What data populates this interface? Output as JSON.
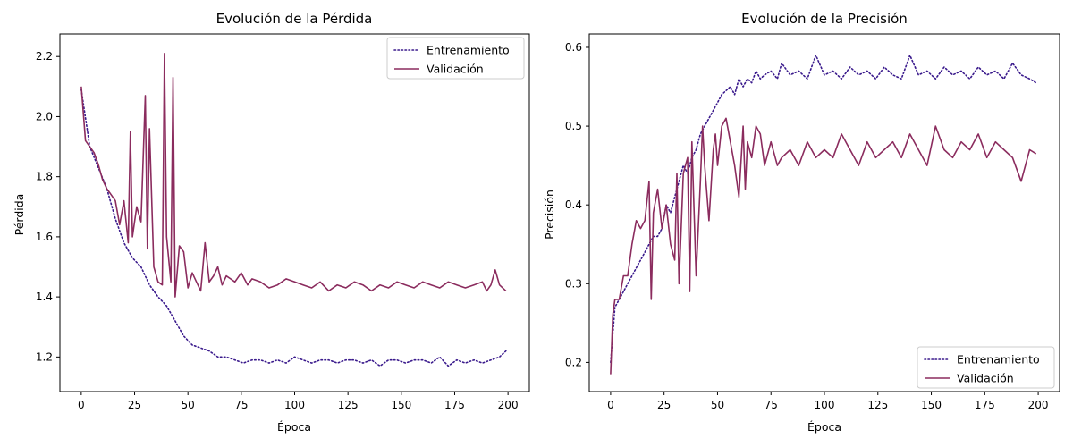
{
  "colors": {
    "train": "#3a1a8c",
    "val": "#8b2c5e"
  },
  "chart_data": [
    {
      "type": "line",
      "title": "Evolución de la Pérdida",
      "xlabel": "Época",
      "ylabel": "Pérdida",
      "xlim": [
        -10,
        210
      ],
      "ylim": [
        1.085,
        2.275
      ],
      "xticks": [
        0,
        25,
        50,
        75,
        100,
        125,
        150,
        175,
        200
      ],
      "yticks": [
        1.2,
        1.4,
        1.6,
        1.8,
        2.0,
        2.2
      ],
      "ytick_labels": [
        "1.2",
        "1.4",
        "1.6",
        "1.8",
        "2.0",
        "2.2"
      ],
      "legend": "top-right",
      "grid": false,
      "series": [
        {
          "name": "Entrenamiento",
          "style": "dotted",
          "x": [
            0,
            4,
            8,
            12,
            16,
            20,
            24,
            28,
            32,
            36,
            40,
            44,
            48,
            52,
            56,
            60,
            64,
            68,
            72,
            76,
            80,
            84,
            88,
            92,
            96,
            100,
            104,
            108,
            112,
            116,
            120,
            124,
            128,
            132,
            136,
            140,
            144,
            148,
            152,
            156,
            160,
            164,
            168,
            172,
            176,
            180,
            184,
            188,
            192,
            196,
            199
          ],
          "y": [
            2.09,
            1.9,
            1.83,
            1.76,
            1.66,
            1.58,
            1.53,
            1.5,
            1.44,
            1.4,
            1.37,
            1.32,
            1.27,
            1.24,
            1.23,
            1.22,
            1.2,
            1.2,
            1.19,
            1.18,
            1.19,
            1.19,
            1.18,
            1.19,
            1.18,
            1.2,
            1.19,
            1.18,
            1.19,
            1.19,
            1.18,
            1.19,
            1.19,
            1.18,
            1.19,
            1.17,
            1.19,
            1.19,
            1.18,
            1.19,
            1.19,
            1.18,
            1.2,
            1.17,
            1.19,
            1.18,
            1.19,
            1.18,
            1.19,
            1.2,
            1.22
          ]
        },
        {
          "name": "Validación",
          "style": "solid",
          "x": [
            0,
            2,
            4,
            6,
            8,
            10,
            12,
            14,
            16,
            18,
            20,
            22,
            23,
            24,
            26,
            28,
            30,
            31,
            32,
            34,
            36,
            38,
            39,
            40,
            42,
            43,
            44,
            46,
            48,
            50,
            52,
            54,
            56,
            58,
            60,
            62,
            64,
            66,
            68,
            70,
            72,
            75,
            78,
            80,
            84,
            88,
            92,
            96,
            100,
            104,
            108,
            112,
            116,
            120,
            124,
            128,
            132,
            136,
            140,
            144,
            148,
            152,
            156,
            160,
            164,
            168,
            172,
            176,
            180,
            184,
            188,
            190,
            192,
            194,
            196,
            199
          ],
          "y": [
            2.1,
            1.92,
            1.9,
            1.88,
            1.84,
            1.79,
            1.76,
            1.74,
            1.72,
            1.64,
            1.72,
            1.58,
            1.95,
            1.6,
            1.7,
            1.65,
            2.07,
            1.56,
            1.96,
            1.5,
            1.45,
            1.44,
            2.21,
            1.6,
            1.45,
            2.13,
            1.4,
            1.57,
            1.55,
            1.43,
            1.48,
            1.45,
            1.42,
            1.58,
            1.45,
            1.47,
            1.5,
            1.44,
            1.47,
            1.46,
            1.45,
            1.48,
            1.44,
            1.46,
            1.45,
            1.43,
            1.44,
            1.46,
            1.45,
            1.44,
            1.43,
            1.45,
            1.42,
            1.44,
            1.43,
            1.45,
            1.44,
            1.42,
            1.44,
            1.43,
            1.45,
            1.44,
            1.43,
            1.45,
            1.44,
            1.43,
            1.45,
            1.44,
            1.43,
            1.44,
            1.45,
            1.42,
            1.44,
            1.49,
            1.44,
            1.42
          ]
        }
      ]
    },
    {
      "type": "line",
      "title": "Evolución de la Precisión",
      "xlabel": "Época",
      "ylabel": "Precisión",
      "xlim": [
        -10,
        210
      ],
      "ylim": [
        0.163,
        0.617
      ],
      "xticks": [
        0,
        25,
        50,
        75,
        100,
        125,
        150,
        175,
        200
      ],
      "yticks": [
        0.2,
        0.3,
        0.4,
        0.5,
        0.6
      ],
      "ytick_labels": [
        "0.2",
        "0.3",
        "0.4",
        "0.5",
        "0.6"
      ],
      "legend": "bottom-right",
      "grid": false,
      "series": [
        {
          "name": "Entrenamiento",
          "style": "dotted",
          "x": [
            0,
            2,
            4,
            6,
            8,
            10,
            12,
            14,
            16,
            18,
            20,
            22,
            24,
            26,
            28,
            30,
            32,
            34,
            36,
            38,
            40,
            42,
            44,
            46,
            48,
            50,
            52,
            54,
            56,
            58,
            60,
            62,
            64,
            66,
            68,
            70,
            72,
            75,
            78,
            80,
            84,
            88,
            92,
            96,
            100,
            104,
            108,
            112,
            116,
            120,
            124,
            128,
            132,
            136,
            140,
            144,
            148,
            152,
            156,
            160,
            164,
            168,
            172,
            176,
            180,
            184,
            188,
            192,
            196,
            199
          ],
          "y": [
            0.2,
            0.27,
            0.28,
            0.29,
            0.3,
            0.31,
            0.32,
            0.33,
            0.34,
            0.35,
            0.36,
            0.36,
            0.37,
            0.4,
            0.39,
            0.41,
            0.43,
            0.45,
            0.44,
            0.46,
            0.47,
            0.49,
            0.5,
            0.51,
            0.52,
            0.53,
            0.54,
            0.545,
            0.55,
            0.54,
            0.56,
            0.55,
            0.56,
            0.555,
            0.57,
            0.56,
            0.565,
            0.57,
            0.56,
            0.58,
            0.565,
            0.57,
            0.56,
            0.59,
            0.565,
            0.57,
            0.56,
            0.575,
            0.565,
            0.57,
            0.56,
            0.575,
            0.565,
            0.56,
            0.59,
            0.565,
            0.57,
            0.56,
            0.575,
            0.565,
            0.57,
            0.56,
            0.575,
            0.565,
            0.57,
            0.56,
            0.58,
            0.565,
            0.56,
            0.555
          ]
        },
        {
          "name": "Validación",
          "style": "solid",
          "x": [
            0,
            1,
            2,
            4,
            6,
            8,
            10,
            12,
            14,
            16,
            18,
            19,
            20,
            22,
            24,
            26,
            28,
            30,
            31,
            32,
            34,
            36,
            37,
            38,
            40,
            42,
            43,
            44,
            46,
            48,
            49,
            50,
            52,
            54,
            56,
            58,
            60,
            62,
            63,
            64,
            66,
            68,
            70,
            72,
            75,
            78,
            80,
            84,
            88,
            92,
            96,
            100,
            104,
            108,
            112,
            116,
            120,
            124,
            128,
            132,
            136,
            140,
            144,
            148,
            152,
            156,
            160,
            164,
            168,
            172,
            176,
            180,
            184,
            188,
            192,
            196,
            199
          ],
          "y": [
            0.185,
            0.26,
            0.28,
            0.28,
            0.31,
            0.31,
            0.35,
            0.38,
            0.37,
            0.38,
            0.43,
            0.28,
            0.39,
            0.42,
            0.37,
            0.4,
            0.35,
            0.33,
            0.44,
            0.3,
            0.44,
            0.46,
            0.29,
            0.48,
            0.31,
            0.43,
            0.5,
            0.45,
            0.38,
            0.47,
            0.49,
            0.45,
            0.5,
            0.51,
            0.48,
            0.45,
            0.41,
            0.5,
            0.42,
            0.48,
            0.46,
            0.5,
            0.49,
            0.45,
            0.48,
            0.45,
            0.46,
            0.47,
            0.45,
            0.48,
            0.46,
            0.47,
            0.46,
            0.49,
            0.47,
            0.45,
            0.48,
            0.46,
            0.47,
            0.48,
            0.46,
            0.49,
            0.47,
            0.45,
            0.5,
            0.47,
            0.46,
            0.48,
            0.47,
            0.49,
            0.46,
            0.48,
            0.47,
            0.46,
            0.43,
            0.47,
            0.465
          ]
        }
      ]
    }
  ]
}
